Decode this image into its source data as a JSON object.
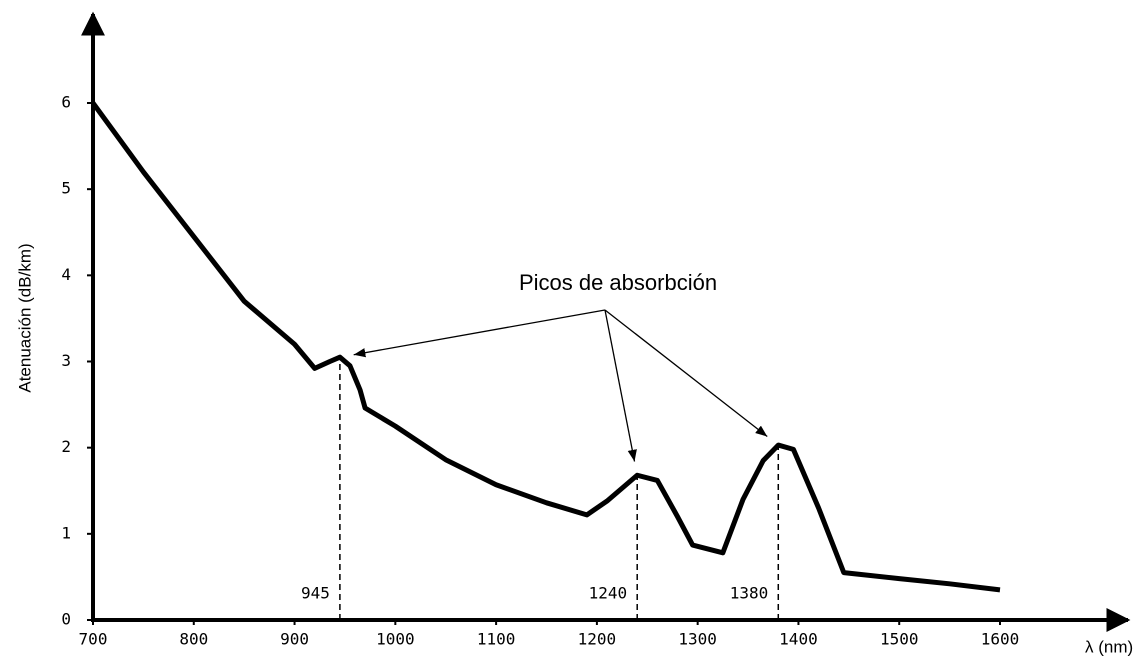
{
  "chart_data": {
    "type": "line",
    "x_label": "λ (nm)",
    "y_label": "Atenuación (dB/km)",
    "annotation": "Picos de absorbción",
    "x": [
      700,
      750,
      800,
      850,
      900,
      920,
      935,
      945,
      955,
      965,
      970,
      1000,
      1050,
      1100,
      1150,
      1190,
      1210,
      1240,
      1260,
      1280,
      1295,
      1325,
      1345,
      1365,
      1380,
      1395,
      1420,
      1445,
      1500,
      1550,
      1600
    ],
    "values": [
      6.0,
      5.2,
      4.45,
      3.7,
      3.2,
      2.92,
      3.0,
      3.05,
      2.95,
      2.67,
      2.46,
      2.25,
      1.86,
      1.57,
      1.36,
      1.22,
      1.38,
      1.68,
      1.62,
      1.2,
      0.87,
      0.78,
      1.4,
      1.85,
      2.03,
      1.98,
      1.3,
      0.55,
      0.48,
      0.42,
      0.35
    ],
    "color": "#000000",
    "markers": [
      945,
      1240,
      1380
    ],
    "xlim": [
      700,
      1600
    ],
    "xticks": [
      700,
      800,
      900,
      1000,
      1100,
      1200,
      1300,
      1400,
      1500,
      1600
    ],
    "ylim": [
      0,
      6
    ],
    "yticks": [
      0,
      1,
      2,
      3,
      4,
      5,
      6
    ],
    "grid": false
  }
}
